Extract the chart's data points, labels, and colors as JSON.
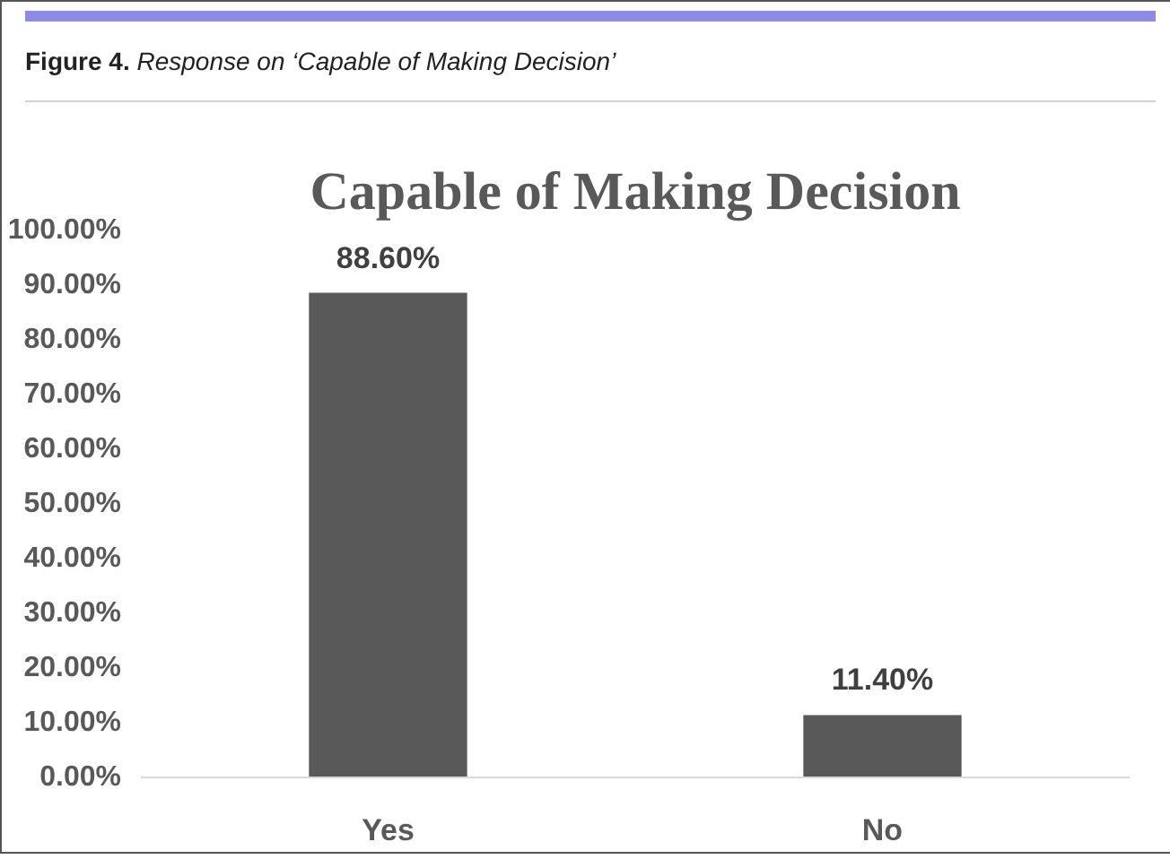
{
  "chart_data": {
    "type": "bar",
    "title": "Capable of Making Decision",
    "annotations": [
      "Figure 4. Response on ‘Capable of Making Decision’"
    ],
    "categories": [
      "Yes",
      "No"
    ],
    "values": [
      88.6,
      11.4
    ],
    "color": "#595959",
    "value_labels": [
      "88.60%",
      "11.40%"
    ],
    "ylim": [
      0,
      100
    ],
    "yticks": [
      {
        "value": 0,
        "label": "0.00%"
      },
      {
        "value": 10,
        "label": "10.00%"
      },
      {
        "value": 20,
        "label": "20.00%"
      },
      {
        "value": 30,
        "label": "30.00%"
      },
      {
        "value": 40,
        "label": "40.00%"
      },
      {
        "value": 50,
        "label": "50.00%"
      },
      {
        "value": 60,
        "label": "60.00%"
      },
      {
        "value": 70,
        "label": "70.00%"
      },
      {
        "value": 80,
        "label": "80.00%"
      },
      {
        "value": 90,
        "label": "90.00%"
      },
      {
        "value": 100,
        "label": "100.00%"
      }
    ],
    "grid": false
  }
}
